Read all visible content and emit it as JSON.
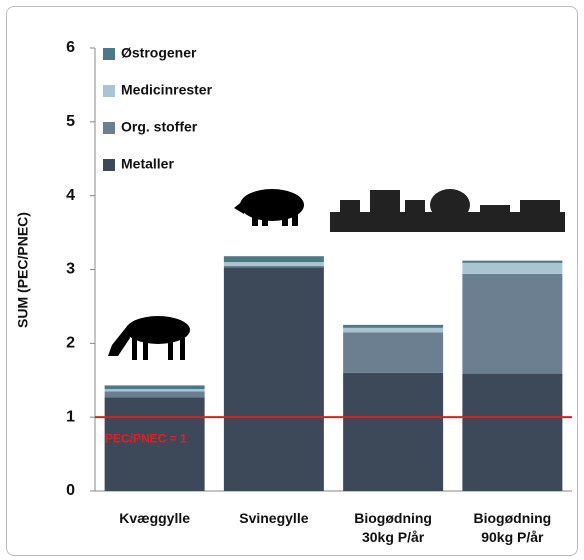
{
  "chart_data": {
    "type": "stacked-bar",
    "y_label": "SUM (PEC/PNEC)",
    "categories": [
      "Kvæggylle",
      "Svinegylle",
      "Biogødning\n30kg P/år",
      "Biogødning\n90kg P/år"
    ],
    "series": [
      {
        "name": "Metaller",
        "color": "#3d4959",
        "values": [
          1.27,
          3.03,
          1.6,
          1.59
        ]
      },
      {
        "name": "Org. stoffer",
        "color": "#6b7f90",
        "values": [
          0.08,
          0.02,
          0.55,
          1.35
        ]
      },
      {
        "name": "Medicinrester",
        "color": "#a9c5d2",
        "values": [
          0.03,
          0.05,
          0.06,
          0.15
        ]
      },
      {
        "name": "Østrogener",
        "color": "#4d7886",
        "values": [
          0.05,
          0.08,
          0.04,
          0.03
        ]
      }
    ],
    "ylim": [
      0,
      6
    ],
    "yticks": [
      0,
      1,
      2,
      3,
      4,
      5,
      6
    ],
    "reference_line": {
      "value": 1,
      "label": "PEC/PNEC = 1",
      "color": "#e02020"
    }
  }
}
